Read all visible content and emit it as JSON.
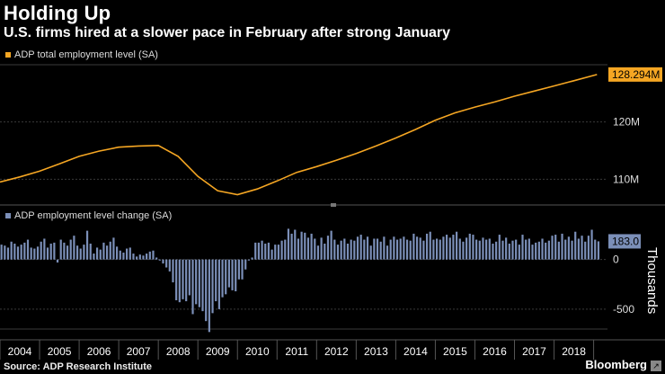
{
  "header": {
    "title": "Holding Up",
    "subtitle": "U.S. firms hired at a slower pace in February after strong January"
  },
  "footer": {
    "source": "Source: ADP Research Institute",
    "brand": "Bloomberg"
  },
  "colors": {
    "level_line": "#f5a623",
    "change_bars": "#7b8fb8",
    "background": "#000000",
    "grid": "#3a3a3a"
  },
  "chart_data": [
    {
      "type": "line",
      "legend": "ADP total employment level (SA)",
      "units": "M",
      "ylim": [
        105.5,
        130
      ],
      "yticks": [
        "110M",
        "120M"
      ],
      "last_value_label": "128.294M",
      "x": [
        "2004-01",
        "2004-07",
        "2005-01",
        "2005-07",
        "2006-01",
        "2006-07",
        "2007-01",
        "2007-07",
        "2008-01",
        "2008-07",
        "2009-01",
        "2009-07",
        "2010-01",
        "2010-07",
        "2011-01",
        "2011-07",
        "2012-01",
        "2012-07",
        "2013-01",
        "2013-07",
        "2014-01",
        "2014-07",
        "2015-01",
        "2015-07",
        "2016-01",
        "2016-07",
        "2017-01",
        "2017-07",
        "2018-01",
        "2018-07",
        "2019-02"
      ],
      "values": [
        109.5,
        110.4,
        111.4,
        112.7,
        114.0,
        114.9,
        115.6,
        115.8,
        115.9,
        114.0,
        110.5,
        108.0,
        107.3,
        108.3,
        109.7,
        111.2,
        112.2,
        113.3,
        114.5,
        115.8,
        117.2,
        118.7,
        120.3,
        121.6,
        122.6,
        123.5,
        124.5,
        125.4,
        126.3,
        127.2,
        128.294
      ],
      "grid": true
    },
    {
      "type": "bar",
      "legend": "ADP employment level change (SA)",
      "units": "Thousands",
      "ylabel": "Thousands",
      "ylim": [
        -700,
        350
      ],
      "yticks": [
        "0",
        "-500"
      ],
      "last_value_label": "183.0",
      "xticklabels": [
        "2004",
        "2005",
        "2006",
        "2007",
        "2008",
        "2009",
        "2010",
        "2011",
        "2012",
        "2013",
        "2014",
        "2015",
        "2016",
        "2017",
        "2018"
      ],
      "x_start": "2004-01",
      "values": [
        150,
        140,
        120,
        180,
        160,
        130,
        150,
        170,
        200,
        120,
        110,
        130,
        180,
        210,
        120,
        160,
        170,
        -30,
        200,
        170,
        140,
        200,
        240,
        140,
        110,
        150,
        290,
        160,
        60,
        120,
        100,
        170,
        140,
        180,
        220,
        130,
        90,
        70,
        110,
        120,
        60,
        30,
        50,
        40,
        60,
        80,
        90,
        20,
        -10,
        -40,
        -80,
        -120,
        -230,
        -410,
        -430,
        -400,
        -420,
        -360,
        -550,
        -450,
        -480,
        -520,
        -620,
        -730,
        -540,
        -420,
        -500,
        -380,
        -350,
        -280,
        -310,
        -320,
        -200,
        -200,
        -100,
        -10,
        20,
        170,
        170,
        190,
        160,
        170,
        100,
        150,
        150,
        190,
        200,
        310,
        260,
        300,
        210,
        280,
        270,
        220,
        260,
        210,
        140,
        220,
        160,
        240,
        290,
        200,
        150,
        190,
        210,
        160,
        200,
        190,
        230,
        250,
        200,
        230,
        140,
        210,
        210,
        180,
        230,
        140,
        200,
        230,
        200,
        210,
        230,
        200,
        190,
        260,
        230,
        220,
        190,
        260,
        280,
        200,
        210,
        200,
        230,
        250,
        220,
        250,
        280,
        210,
        180,
        220,
        260,
        250,
        200,
        190,
        220,
        200,
        210,
        160,
        180,
        250,
        190,
        220,
        160,
        190,
        200,
        150,
        250,
        200,
        210,
        150,
        170,
        180,
        210,
        170,
        190,
        240,
        250,
        180,
        260,
        200,
        230,
        190,
        280,
        210,
        240,
        180,
        240,
        300,
        200,
        183
      ],
      "grid": true
    }
  ]
}
